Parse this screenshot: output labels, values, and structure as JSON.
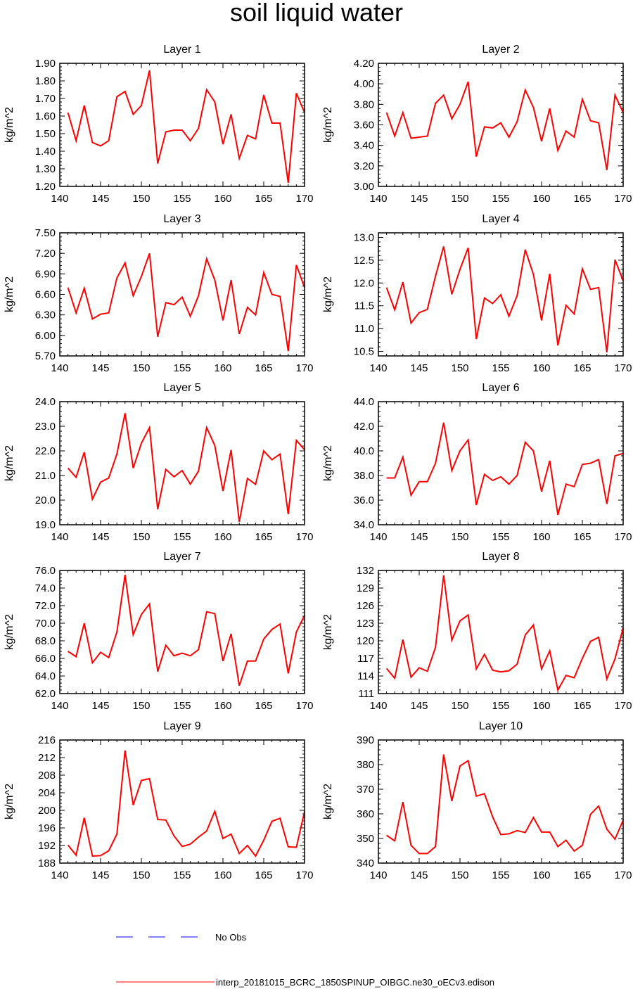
{
  "figure": {
    "title": "soil liquid water",
    "legend": [
      {
        "label": "No Obs",
        "color": "#0000ff",
        "style": "dashed"
      },
      {
        "label": "interp_20181015_BCRC_1850SPINUP_OIBGC.ne30_oECv3.edison",
        "color": "#ff0000",
        "style": "solid"
      }
    ]
  },
  "chart_data": [
    {
      "type": "line",
      "title": "Layer 1",
      "ylabel": "kg/m^2",
      "xlim": [
        140,
        170
      ],
      "ylim": [
        1.2,
        1.9
      ],
      "xticks": [
        140,
        145,
        150,
        155,
        160,
        165,
        170
      ],
      "yticks": [
        1.2,
        1.3,
        1.4,
        1.5,
        1.6,
        1.7,
        1.8,
        1.9
      ],
      "ytick_labels": [
        "1.20",
        "1.30",
        "1.40",
        "1.50",
        "1.60",
        "1.70",
        "1.80",
        "1.90"
      ],
      "x": [
        141,
        142,
        143,
        144,
        145,
        146,
        147,
        148,
        149,
        150,
        151,
        152,
        153,
        154,
        155,
        156,
        157,
        158,
        159,
        160,
        161,
        162,
        163,
        164,
        165,
        166,
        167,
        168,
        169,
        170
      ],
      "series": [
        {
          "color": "#ff0000",
          "values": [
            1.62,
            1.46,
            1.66,
            1.45,
            1.43,
            1.46,
            1.71,
            1.74,
            1.61,
            1.66,
            1.86,
            1.33,
            1.51,
            1.52,
            1.52,
            1.46,
            1.53,
            1.75,
            1.68,
            1.44,
            1.61,
            1.36,
            1.49,
            1.47,
            1.72,
            1.56,
            1.56,
            1.22,
            1.73,
            1.62
          ]
        }
      ]
    },
    {
      "type": "line",
      "title": "Layer 2",
      "ylabel": "kg/m^2",
      "xlim": [
        140,
        170
      ],
      "ylim": [
        3.0,
        4.2
      ],
      "xticks": [
        140,
        145,
        150,
        155,
        160,
        165,
        170
      ],
      "yticks": [
        3.0,
        3.2,
        3.4,
        3.6,
        3.8,
        4.0,
        4.2
      ],
      "ytick_labels": [
        "3.00",
        "3.20",
        "3.40",
        "3.60",
        "3.80",
        "4.00",
        "4.20"
      ],
      "x": [
        141,
        142,
        143,
        144,
        145,
        146,
        147,
        148,
        149,
        150,
        151,
        152,
        153,
        154,
        155,
        156,
        157,
        158,
        159,
        160,
        161,
        162,
        163,
        164,
        165,
        166,
        167,
        168,
        169,
        170
      ],
      "series": [
        {
          "color": "#ff0000",
          "values": [
            3.72,
            3.49,
            3.72,
            3.47,
            3.48,
            3.49,
            3.81,
            3.89,
            3.66,
            3.8,
            4.02,
            3.29,
            3.58,
            3.57,
            3.62,
            3.48,
            3.63,
            3.94,
            3.77,
            3.44,
            3.76,
            3.35,
            3.54,
            3.48,
            3.85,
            3.64,
            3.62,
            3.16,
            3.89,
            3.72
          ]
        }
      ]
    },
    {
      "type": "line",
      "title": "Layer 3",
      "ylabel": "kg/m^2",
      "xlim": [
        140,
        170
      ],
      "ylim": [
        5.7,
        7.5
      ],
      "xticks": [
        140,
        145,
        150,
        155,
        160,
        165,
        170
      ],
      "yticks": [
        5.7,
        6.0,
        6.3,
        6.6,
        6.9,
        7.2,
        7.5
      ],
      "ytick_labels": [
        "5.70",
        "6.00",
        "6.30",
        "6.60",
        "6.90",
        "7.20",
        "7.50"
      ],
      "x": [
        141,
        142,
        143,
        144,
        145,
        146,
        147,
        148,
        149,
        150,
        151,
        152,
        153,
        154,
        155,
        156,
        157,
        158,
        159,
        160,
        161,
        162,
        163,
        164,
        165,
        166,
        167,
        168,
        169,
        170
      ],
      "series": [
        {
          "color": "#ff0000",
          "values": [
            6.7,
            6.33,
            6.69,
            6.24,
            6.31,
            6.33,
            6.84,
            7.06,
            6.58,
            6.86,
            7.2,
            5.98,
            6.48,
            6.45,
            6.56,
            6.28,
            6.58,
            7.12,
            6.81,
            6.22,
            6.81,
            6.02,
            6.41,
            6.3,
            6.92,
            6.6,
            6.57,
            5.77,
            7.03,
            6.7
          ]
        }
      ]
    },
    {
      "type": "line",
      "title": "Layer 4",
      "ylabel": "kg/m^2",
      "xlim": [
        140,
        170
      ],
      "ylim": [
        10.4,
        13.1
      ],
      "xticks": [
        140,
        145,
        150,
        155,
        160,
        165,
        170
      ],
      "yticks": [
        10.5,
        11.0,
        11.5,
        12.0,
        12.5,
        13.0
      ],
      "ytick_labels": [
        "10.5",
        "11.0",
        "11.5",
        "12.0",
        "12.5",
        "13.0"
      ],
      "x": [
        141,
        142,
        143,
        144,
        145,
        146,
        147,
        148,
        149,
        150,
        151,
        152,
        153,
        154,
        155,
        156,
        157,
        158,
        159,
        160,
        161,
        162,
        163,
        164,
        165,
        166,
        167,
        168,
        169,
        170
      ],
      "series": [
        {
          "color": "#ff0000",
          "values": [
            11.9,
            11.41,
            12.02,
            11.12,
            11.35,
            11.42,
            12.15,
            12.8,
            11.75,
            12.3,
            12.77,
            10.77,
            11.67,
            11.55,
            11.74,
            11.27,
            11.72,
            12.73,
            12.19,
            11.18,
            12.2,
            10.63,
            11.51,
            11.32,
            12.31,
            11.86,
            11.9,
            10.48,
            12.51,
            12.05
          ]
        }
      ]
    },
    {
      "type": "line",
      "title": "Layer 5",
      "ylabel": "kg/m^2",
      "xlim": [
        140,
        170
      ],
      "ylim": [
        19.0,
        24.0
      ],
      "xticks": [
        140,
        145,
        150,
        155,
        160,
        165,
        170
      ],
      "yticks": [
        19,
        20,
        21,
        22,
        23,
        24
      ],
      "ytick_labels": [
        "19.0",
        "20.0",
        "21.0",
        "22.0",
        "23.0",
        "24.0"
      ],
      "x": [
        141,
        142,
        143,
        144,
        145,
        146,
        147,
        148,
        149,
        150,
        151,
        152,
        153,
        154,
        155,
        156,
        157,
        158,
        159,
        160,
        161,
        162,
        163,
        164,
        165,
        166,
        167,
        168,
        169,
        170
      ],
      "series": [
        {
          "color": "#ff0000",
          "values": [
            21.3,
            20.93,
            21.95,
            20.04,
            20.73,
            20.9,
            21.87,
            23.53,
            21.3,
            22.31,
            22.95,
            19.63,
            21.25,
            20.95,
            21.2,
            20.65,
            21.18,
            22.95,
            22.22,
            20.37,
            22.04,
            19.12,
            20.88,
            20.64,
            22.0,
            21.64,
            21.87,
            19.43,
            22.43,
            22.05
          ]
        }
      ]
    },
    {
      "type": "line",
      "title": "Layer 6",
      "ylabel": "kg/m^2",
      "xlim": [
        140,
        170
      ],
      "ylim": [
        34.0,
        44.0
      ],
      "xticks": [
        140,
        145,
        150,
        155,
        160,
        165,
        170
      ],
      "yticks": [
        34,
        36,
        38,
        40,
        42,
        44
      ],
      "ytick_labels": [
        "34.0",
        "36.0",
        "38.0",
        "40.0",
        "42.0",
        "44.0"
      ],
      "x": [
        141,
        142,
        143,
        144,
        145,
        146,
        147,
        148,
        149,
        150,
        151,
        152,
        153,
        154,
        155,
        156,
        157,
        158,
        159,
        160,
        161,
        162,
        163,
        164,
        165,
        166,
        167,
        168,
        169,
        170
      ],
      "series": [
        {
          "color": "#ff0000",
          "values": [
            37.8,
            37.8,
            39.5,
            36.4,
            37.5,
            37.5,
            39.0,
            42.3,
            38.4,
            40.0,
            40.9,
            35.6,
            38.1,
            37.6,
            37.9,
            37.3,
            38.0,
            40.7,
            40.0,
            36.7,
            39.2,
            34.8,
            37.3,
            37.1,
            38.9,
            39.0,
            39.3,
            35.7,
            39.6,
            39.8
          ]
        }
      ]
    },
    {
      "type": "line",
      "title": "Layer 7",
      "ylabel": "kg/m^2",
      "xlim": [
        140,
        170
      ],
      "ylim": [
        62.0,
        76.0
      ],
      "xticks": [
        140,
        145,
        150,
        155,
        160,
        165,
        170
      ],
      "yticks": [
        62,
        64,
        66,
        68,
        70,
        72,
        74,
        76
      ],
      "ytick_labels": [
        "62.0",
        "64.0",
        "66.0",
        "68.0",
        "70.0",
        "72.0",
        "74.0",
        "76.0"
      ],
      "x": [
        141,
        142,
        143,
        144,
        145,
        146,
        147,
        148,
        149,
        150,
        151,
        152,
        153,
        154,
        155,
        156,
        157,
        158,
        159,
        160,
        161,
        162,
        163,
        164,
        165,
        166,
        167,
        168,
        169,
        170
      ],
      "series": [
        {
          "color": "#ff0000",
          "values": [
            66.8,
            66.2,
            70.0,
            65.5,
            66.7,
            66.1,
            69.0,
            75.5,
            68.7,
            71.0,
            72.2,
            64.5,
            67.5,
            66.3,
            66.6,
            66.3,
            67.0,
            71.3,
            71.1,
            65.7,
            68.8,
            62.9,
            65.7,
            65.7,
            68.2,
            69.3,
            69.9,
            64.3,
            69.0,
            70.9
          ]
        }
      ]
    },
    {
      "type": "line",
      "title": "Layer 8",
      "ylabel": "kg/m^2",
      "xlim": [
        140,
        170
      ],
      "ylim": [
        111,
        132
      ],
      "xticks": [
        140,
        145,
        150,
        155,
        160,
        165,
        170
      ],
      "yticks": [
        111,
        114,
        117,
        120,
        123,
        126,
        129,
        132
      ],
      "ytick_labels": [
        "111",
        "114",
        "117",
        "120",
        "123",
        "126",
        "129",
        "132"
      ],
      "x": [
        141,
        142,
        143,
        144,
        145,
        146,
        147,
        148,
        149,
        150,
        151,
        152,
        153,
        154,
        155,
        156,
        157,
        158,
        159,
        160,
        161,
        162,
        163,
        164,
        165,
        166,
        167,
        168,
        169,
        170
      ],
      "series": [
        {
          "color": "#ff0000",
          "values": [
            115.3,
            113.6,
            120.2,
            113.8,
            115.4,
            114.8,
            118.9,
            131.2,
            120.1,
            123.4,
            124.4,
            115.2,
            117.7,
            115.0,
            114.7,
            114.9,
            116.0,
            121.0,
            122.7,
            115.2,
            118.3,
            111.6,
            114.1,
            113.7,
            117.0,
            119.9,
            120.6,
            113.5,
            116.9,
            122.2
          ]
        }
      ]
    },
    {
      "type": "line",
      "title": "Layer 9",
      "ylabel": "kg/m^2",
      "xlim": [
        140,
        170
      ],
      "ylim": [
        188,
        216
      ],
      "xticks": [
        140,
        145,
        150,
        155,
        160,
        165,
        170
      ],
      "yticks": [
        188,
        192,
        196,
        200,
        204,
        208,
        212,
        216
      ],
      "ytick_labels": [
        "188",
        "192",
        "196",
        "200",
        "204",
        "208",
        "212",
        "216"
      ],
      "x": [
        141,
        142,
        143,
        144,
        145,
        146,
        147,
        148,
        149,
        150,
        151,
        152,
        153,
        154,
        155,
        156,
        157,
        158,
        159,
        160,
        161,
        162,
        163,
        164,
        165,
        166,
        167,
        168,
        169,
        170
      ],
      "series": [
        {
          "color": "#ff0000",
          "values": [
            192.1,
            189.8,
            198.3,
            189.6,
            189.7,
            190.8,
            194.6,
            213.6,
            201.2,
            206.8,
            207.2,
            197.9,
            197.8,
            194.2,
            191.8,
            192.3,
            193.9,
            195.3,
            199.8,
            193.6,
            194.6,
            190.2,
            192.0,
            189.6,
            193.2,
            197.5,
            198.2,
            191.7,
            191.6,
            199.7
          ]
        }
      ]
    },
    {
      "type": "line",
      "title": "Layer 10",
      "ylabel": "kg/m^2",
      "xlim": [
        140,
        170
      ],
      "ylim": [
        340,
        390
      ],
      "xticks": [
        140,
        145,
        150,
        155,
        160,
        165,
        170
      ],
      "yticks": [
        340,
        350,
        360,
        370,
        380,
        390
      ],
      "ytick_labels": [
        "340",
        "350",
        "360",
        "370",
        "380",
        "390"
      ],
      "x": [
        141,
        142,
        143,
        144,
        145,
        146,
        147,
        148,
        149,
        150,
        151,
        152,
        153,
        154,
        155,
        156,
        157,
        158,
        159,
        160,
        161,
        162,
        163,
        164,
        165,
        166,
        167,
        168,
        169,
        170
      ],
      "series": [
        {
          "color": "#ff0000",
          "values": [
            351.3,
            349.0,
            364.8,
            347.2,
            343.9,
            343.9,
            346.7,
            384.1,
            365.2,
            379.4,
            381.6,
            367.2,
            368.2,
            358.8,
            351.6,
            351.9,
            353.2,
            352.4,
            358.5,
            352.6,
            352.6,
            346.7,
            349.3,
            344.9,
            347.2,
            359.8,
            363.2,
            353.8,
            349.7,
            357.4
          ]
        }
      ]
    }
  ]
}
